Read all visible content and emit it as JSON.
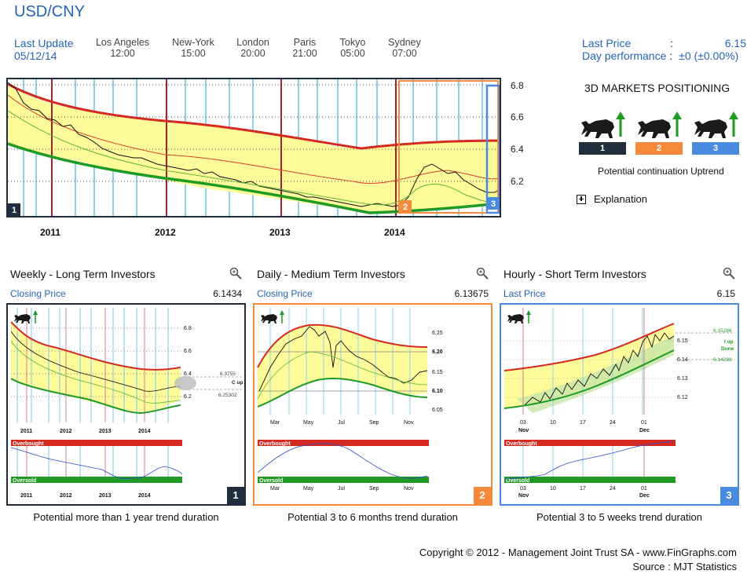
{
  "title": "USD/CNY",
  "last_update": {
    "label": "Last Update",
    "date": "05/12/14"
  },
  "cities": [
    {
      "name": "Los Angeles",
      "time": "12:00"
    },
    {
      "name": "New-York",
      "time": "15:00"
    },
    {
      "name": "London",
      "time": "20:00"
    },
    {
      "name": "Paris",
      "time": "21:00"
    },
    {
      "name": "Tokyo",
      "time": "05:00"
    },
    {
      "name": "Sydney",
      "time": "07:00"
    }
  ],
  "quote": {
    "last_price_label": "Last Price",
    "last_price_value": "6.15",
    "day_perf_label": "Day performance",
    "day_perf_value": "±0 (±0.00%)",
    "separator": ":"
  },
  "main_chart": {
    "y_ticks": [
      "6.8",
      "6.6",
      "6.4",
      "6.2"
    ],
    "years": [
      "2011",
      "2012",
      "2013",
      "2014"
    ],
    "zone_labels": [
      "1",
      "2",
      "3"
    ]
  },
  "positioning": {
    "title": "3D MARKETS POSITIONING",
    "badges": [
      "1",
      "2",
      "3"
    ],
    "status": "Potential continuation Uptrend",
    "explanation": "Explanation",
    "colors": {
      "1": "#1f2d3d",
      "2": "#f58a3c",
      "3": "#4a8be0"
    }
  },
  "panels": [
    {
      "heading": "Weekly - Long Term Investors",
      "price_label": "Closing Price",
      "price_value": "6.1434",
      "badge": "1",
      "footer": "Potential more than 1 year trend duration",
      "x_ticks": [
        "2011",
        "2012",
        "2013",
        "2014"
      ],
      "y_ticks": [
        "6.8",
        "6.6",
        "6.4",
        "6.2"
      ],
      "side_labels": [
        "6.3755",
        "C up",
        "6.25302"
      ],
      "overbought": "Overbought",
      "oversold": "Oversold"
    },
    {
      "heading": "Daily - Medium Term Investors",
      "price_label": "Closing Price",
      "price_value": "6.13675",
      "badge": "2",
      "footer": "Potential 3 to 6 months trend duration",
      "x_ticks": [
        "Mar",
        "May",
        "Jul",
        "Sep",
        "Nov"
      ],
      "y_ticks": [
        "6.25",
        "6.20",
        "6.15",
        "6.10",
        "6.05"
      ],
      "overbought": "Overbought",
      "oversold": "Oversold"
    },
    {
      "heading": "Hourly - Short Term Investors",
      "price_label": "Last Price",
      "price_value": "6.15",
      "badge": "3",
      "footer": "Potential 3 to 5 weeks trend duration",
      "x_ticks": [
        "03",
        "10",
        "17",
        "24",
        "01"
      ],
      "x_sub": [
        "Nov",
        "Dec"
      ],
      "y_ticks": [
        "6.15",
        "6.14",
        "6.13",
        "6.12"
      ],
      "side_labels": [
        "6.15286",
        "I up",
        "Done",
        "6.14288"
      ],
      "overbought": "Overbought",
      "oversold": "Oversold"
    }
  ],
  "copyright": "Copyright © 2012 - Management Joint Trust SA - www.FinGraphs.com",
  "source": "Source : MJT Statistics"
}
